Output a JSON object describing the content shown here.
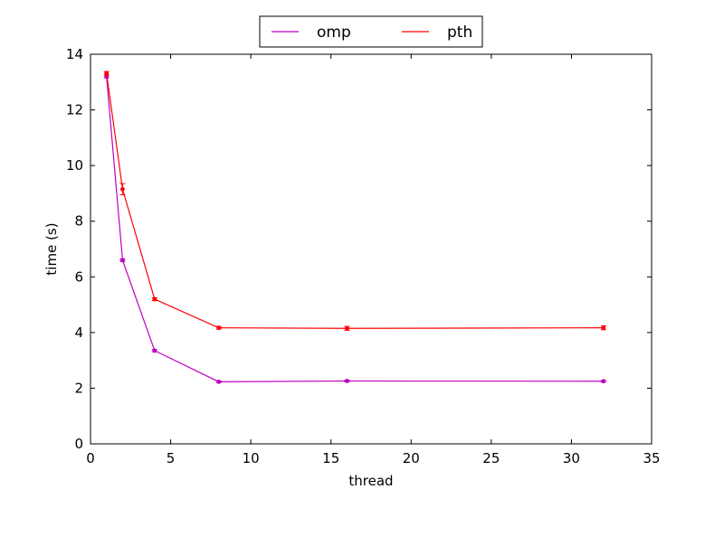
{
  "chart_data": {
    "type": "line",
    "title": "",
    "xlabel": "thread",
    "ylabel": "time (s)",
    "xlim": [
      0,
      35
    ],
    "ylim": [
      0,
      14
    ],
    "xticks": [
      "0",
      "5",
      "10",
      "15",
      "20",
      "25",
      "30",
      "35"
    ],
    "yticks": [
      "0",
      "2",
      "4",
      "6",
      "8",
      "10",
      "12",
      "14"
    ],
    "grid": false,
    "legend": "top-center, outside plot, two columns",
    "x": [
      1,
      2,
      4,
      8,
      16,
      32
    ],
    "series": [
      {
        "name": "omp",
        "color": "#bf00bf",
        "values": [
          13.2,
          6.6,
          3.35,
          2.23,
          2.26,
          2.25
        ],
        "error": [
          0.05,
          0.05,
          0.04,
          0.03,
          0.03,
          0.03
        ]
      },
      {
        "name": "pth",
        "color": "#ff0000",
        "values": [
          13.32,
          9.15,
          5.2,
          4.17,
          4.15,
          4.17
        ],
        "error": [
          0.06,
          0.2,
          0.05,
          0.05,
          0.07,
          0.07
        ]
      }
    ]
  }
}
